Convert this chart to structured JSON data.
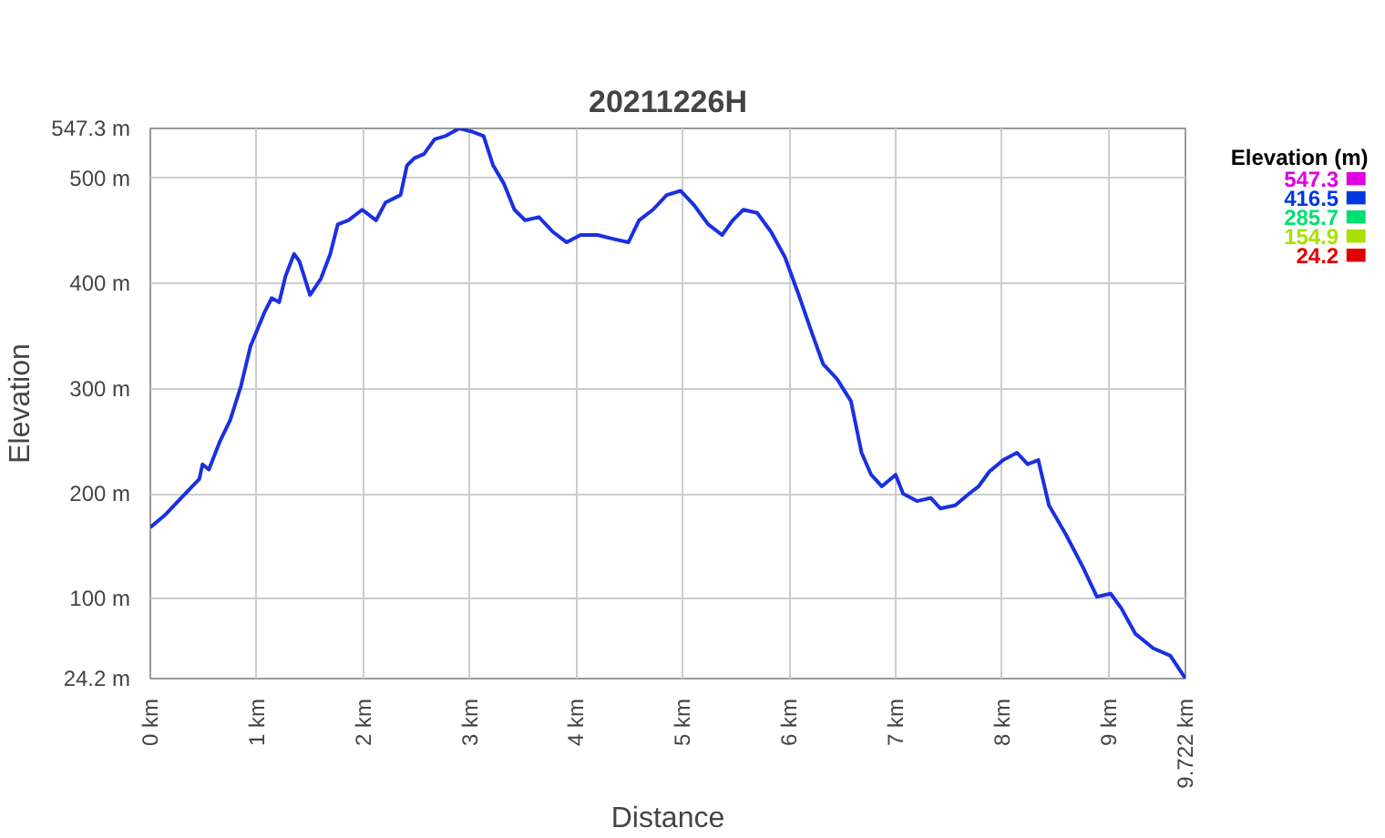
{
  "chart_data": {
    "type": "line",
    "title": "20211226H",
    "xlabel": "Distance",
    "ylabel": "Elevation",
    "clabel": "Elevation (m)",
    "x": [
      0,
      0.13,
      0.29,
      0.46,
      0.49,
      0.55,
      0.65,
      0.75,
      0.85,
      0.94,
      1.07,
      1.14,
      1.21,
      1.27,
      1.35,
      1.4,
      1.5,
      1.6,
      1.69,
      1.76,
      1.86,
      1.99,
      2.12,
      2.21,
      2.35,
      2.41,
      2.48,
      2.57,
      2.67,
      2.77,
      2.9,
      3.03,
      3.13,
      3.22,
      3.32,
      3.42,
      3.52,
      3.65,
      3.78,
      3.91,
      4.04,
      4.2,
      4.36,
      4.49,
      4.59,
      4.72,
      4.85,
      4.98,
      5.11,
      5.24,
      5.37,
      5.47,
      5.57,
      5.7,
      5.83,
      5.96,
      6.09,
      6.22,
      6.32,
      6.45,
      6.58,
      6.68,
      6.77,
      6.87,
      7.0,
      7.07,
      7.2,
      7.33,
      7.42,
      7.56,
      7.69,
      7.78,
      7.88,
      8.01,
      8.14,
      8.24,
      8.34,
      8.44,
      8.6,
      8.76,
      8.89,
      9.02,
      9.12,
      9.25,
      9.42,
      9.58,
      9.722
    ],
    "values": [
      168,
      179,
      196,
      214,
      228,
      223,
      249,
      270,
      302,
      340,
      372,
      386,
      382,
      407,
      428,
      421,
      389,
      404,
      428,
      456,
      460,
      470,
      460,
      477,
      484,
      512,
      519,
      523,
      537,
      540,
      547.3,
      544,
      540,
      512,
      495,
      470,
      460,
      463,
      449,
      439,
      446,
      446,
      442,
      439,
      460,
      470,
      484,
      488,
      474,
      456,
      446,
      460,
      470,
      467,
      449,
      425,
      389,
      351,
      323,
      309,
      288,
      239,
      218,
      207,
      218,
      200,
      193,
      196,
      186,
      189,
      200,
      207,
      221,
      232,
      239,
      228,
      232,
      189,
      161,
      130,
      102,
      105,
      91,
      67,
      53,
      46,
      24.2
    ],
    "clim": [
      24.2,
      547.3
    ],
    "cticks": [
      547.3,
      416.5,
      285.7,
      154.9,
      24.2
    ],
    "color": "#1a30e0",
    "xlim": [
      0,
      9.722
    ],
    "ylim": [
      24.2,
      547.3
    ],
    "xticks": [
      {
        "value": 0,
        "label": "0 km"
      },
      {
        "value": 1,
        "label": "1 km"
      },
      {
        "value": 2,
        "label": "2 km"
      },
      {
        "value": 3,
        "label": "3 km"
      },
      {
        "value": 4,
        "label": "4 km"
      },
      {
        "value": 5,
        "label": "5 km"
      },
      {
        "value": 6,
        "label": "6 km"
      },
      {
        "value": 7,
        "label": "7 km"
      },
      {
        "value": 8,
        "label": "8 km"
      },
      {
        "value": 9,
        "label": "9 km"
      },
      {
        "value": 9.722,
        "label": "9.722 km"
      }
    ],
    "yticks": [
      {
        "value": 24.2,
        "label": "24.2 m"
      },
      {
        "value": 100,
        "label": "100 m"
      },
      {
        "value": 200,
        "label": "200 m"
      },
      {
        "value": 300,
        "label": "300 m"
      },
      {
        "value": 400,
        "label": "400 m"
      },
      {
        "value": 500,
        "label": "500 m"
      },
      {
        "value": 547.3,
        "label": "547.3 m"
      }
    ],
    "grid": true
  }
}
